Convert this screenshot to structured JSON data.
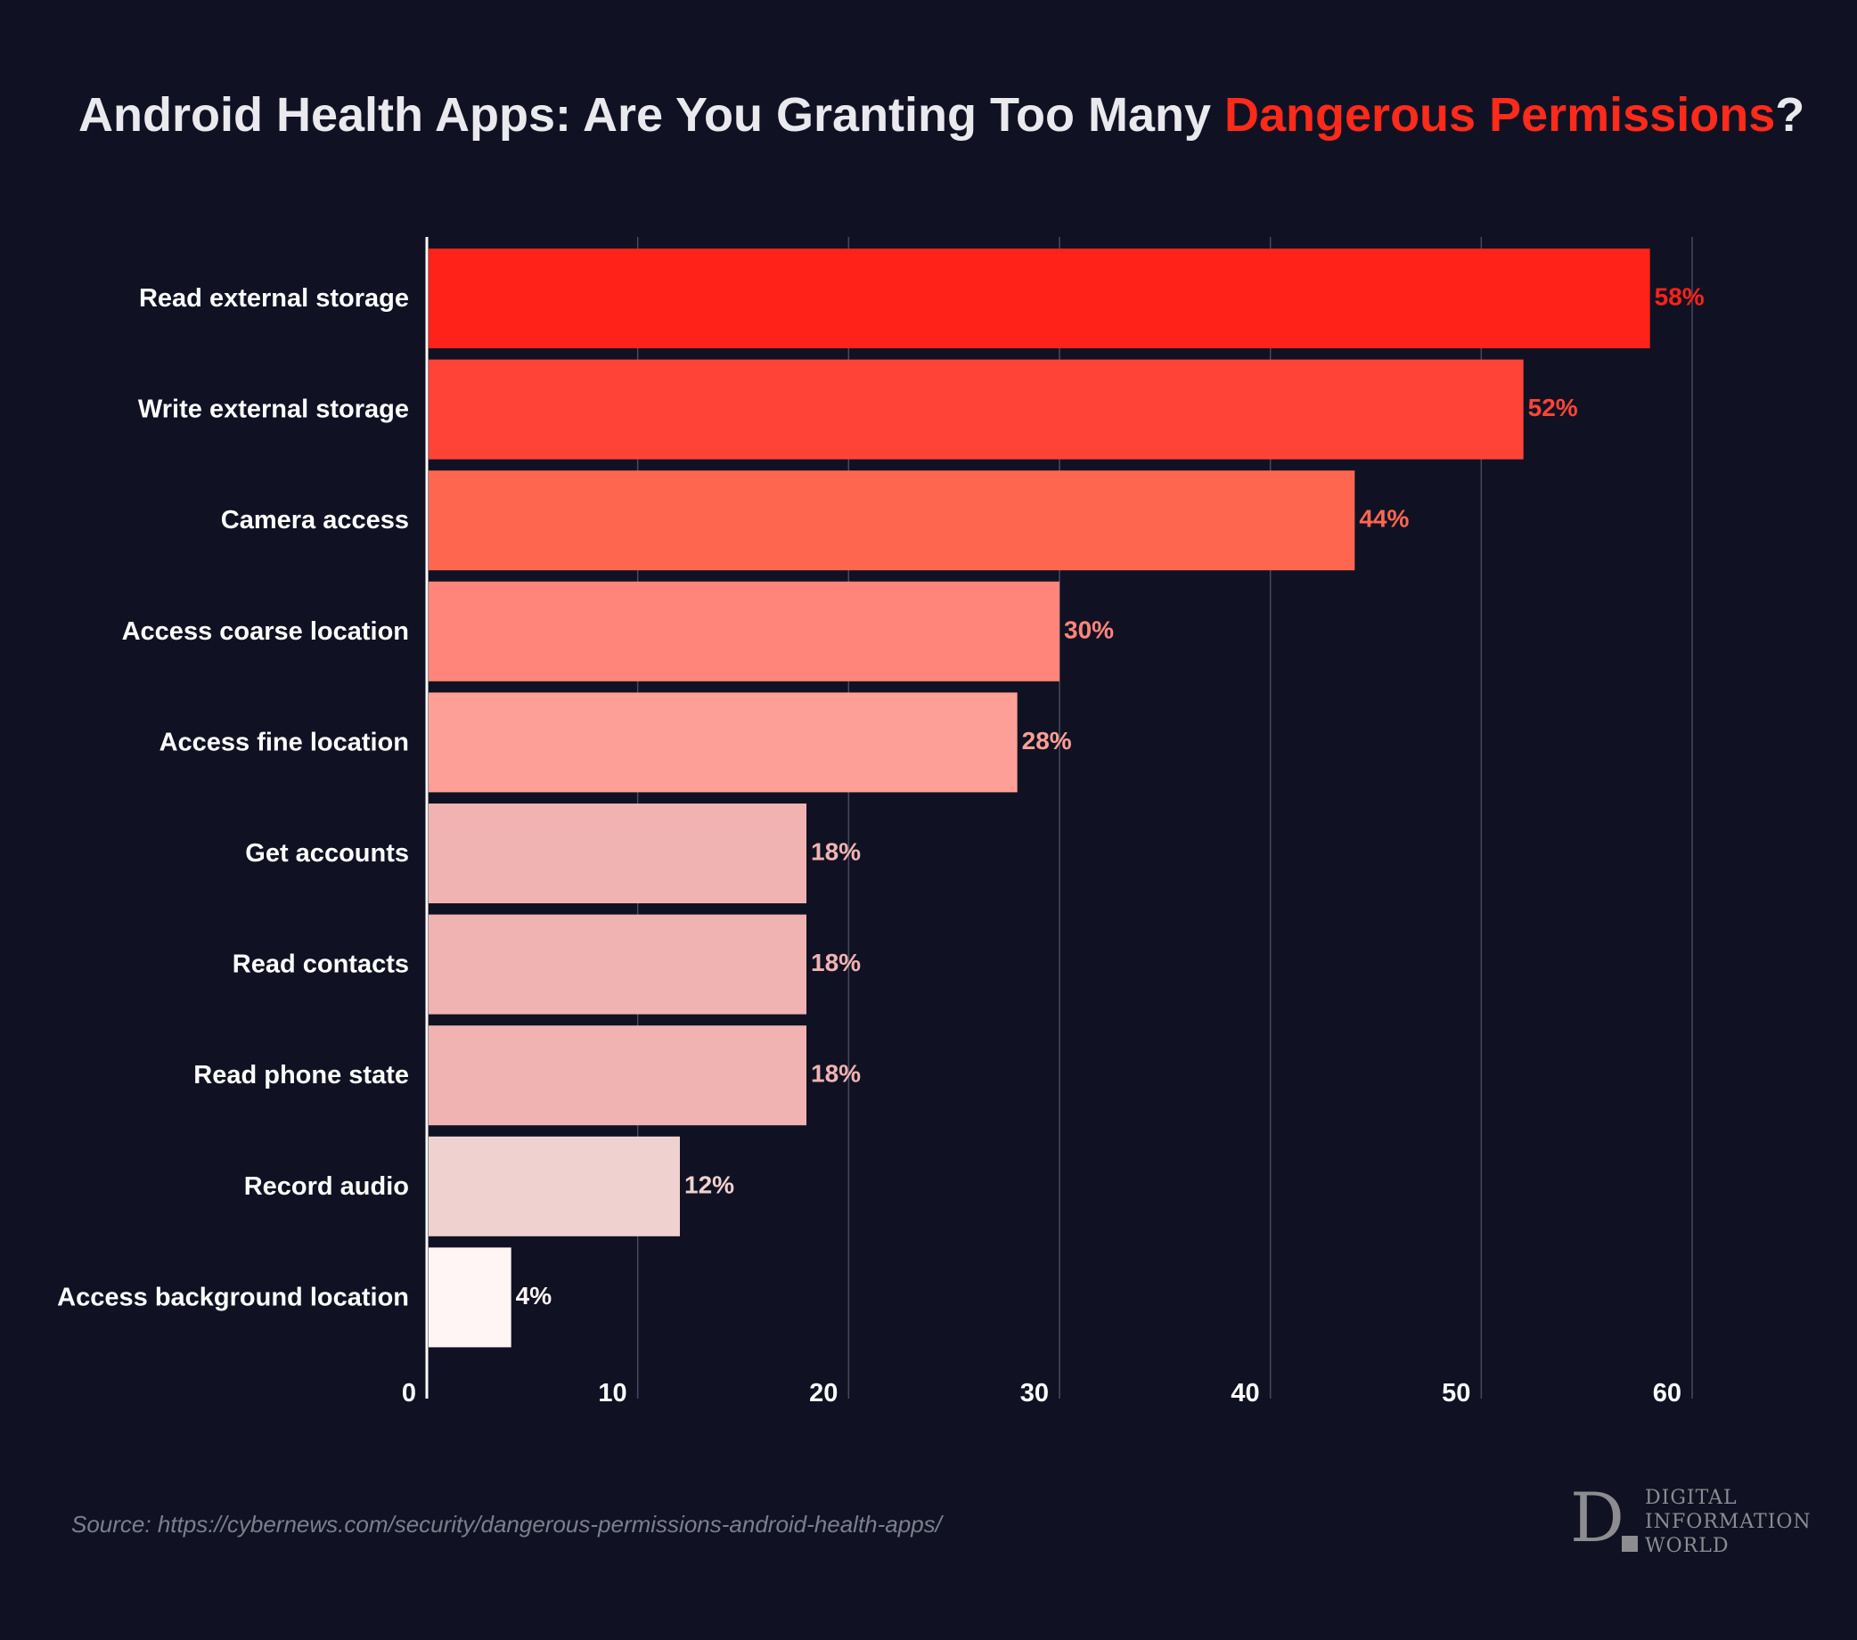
{
  "title": {
    "prefix": "Android Health Apps: Are You Granting Too Many ",
    "highlight": "Dangerous Permissions",
    "suffix": "?"
  },
  "colors": {
    "background": "#101223",
    "title_text": "#e9e9ee",
    "title_accent": "#ff2a1a",
    "gridline": "#474a5a",
    "axis_line": "#ffffff",
    "label_text": "#ffffff"
  },
  "chart_data": {
    "type": "bar",
    "orientation": "horizontal",
    "title": "Android Health Apps: Are You Granting Too Many Dangerous Permissions?",
    "categories": [
      "Read external storage",
      "Write external storage",
      "Camera access",
      "Access coarse location",
      "Access fine location",
      "Get accounts",
      "Read contacts",
      "Read phone state",
      "Record audio",
      "Access background location"
    ],
    "values": [
      58,
      52,
      44,
      30,
      28,
      18,
      18,
      18,
      12,
      4
    ],
    "value_labels": [
      "58%",
      "52%",
      "44%",
      "30%",
      "28%",
      "18%",
      "18%",
      "18%",
      "12%",
      "4%"
    ],
    "bar_colors": [
      "#ff2218",
      "#ff4437",
      "#ff6650",
      "#ff857a",
      "#fd9f96",
      "#f0b3b2",
      "#f0b3b2",
      "#f0b3b2",
      "#efd2cf",
      "#fff5f4"
    ],
    "label_colors": [
      "#ff2218",
      "#ff4437",
      "#ff6650",
      "#ff857a",
      "#fd9f96",
      "#f0b3b2",
      "#f0b3b2",
      "#f0b3b2",
      "#efd2cf",
      "#fff5f4"
    ],
    "xlim": [
      0,
      60
    ],
    "xticks": [
      0,
      10,
      20,
      30,
      40,
      50,
      60
    ],
    "xtick_labels": [
      "0",
      "10",
      "20",
      "30",
      "40",
      "50",
      "60"
    ],
    "xlabel": "",
    "ylabel": "",
    "grid": true,
    "legend": "none"
  },
  "source": "Source: https://cybernews.com/security/dangerous-permissions-android-health-apps/",
  "logo": {
    "letter": "D",
    "line1": "DIGITAL",
    "line2": "INFORMATION",
    "line3": "WORLD"
  }
}
